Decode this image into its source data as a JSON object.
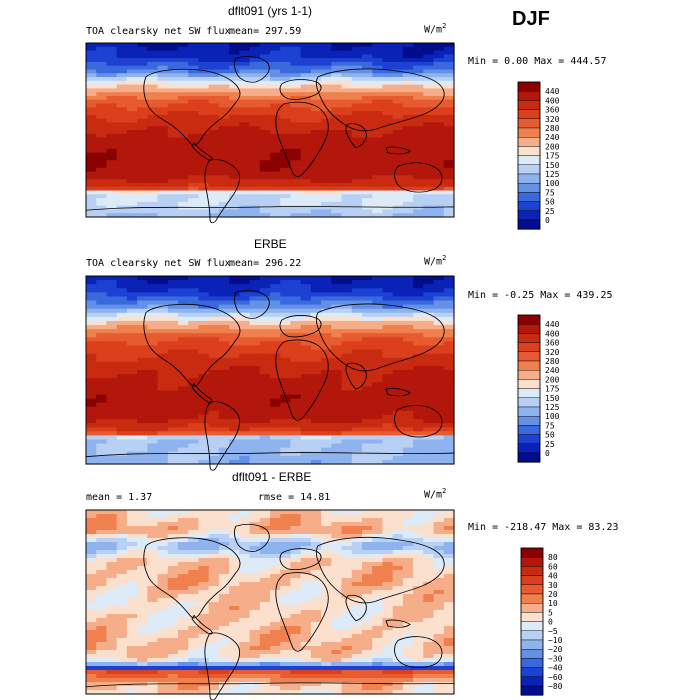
{
  "header": {
    "season": "DJF"
  },
  "chart_data": [
    {
      "type": "heatmap",
      "title": "dflt091 (yrs 1-1)",
      "field_label": "TOA clearsky net SW flux",
      "mean_label": "mean= 297.59",
      "units": "W/m",
      "units_sup": "2",
      "range_label": "Min =    0.00 Max = 444.57",
      "min": 0.0,
      "max": 444.57,
      "mean": 297.59,
      "colorbar": {
        "levels": [
          "440",
          "400",
          "360",
          "320",
          "280",
          "240",
          "200",
          "175",
          "150",
          "125",
          "100",
          "75",
          "50",
          "25",
          "0"
        ],
        "colors": [
          "#8b0000",
          "#b3170b",
          "#c92b10",
          "#dc3f1c",
          "#e85a30",
          "#f0814f",
          "#f6ae8a",
          "#fbe0cd",
          "#ddeaf8",
          "#b7d0f3",
          "#8fb3ee",
          "#6490e6",
          "#3a69de",
          "#1d41d3",
          "#0b22b7",
          "#010d8c"
        ]
      },
      "lat_profile": [
        {
          "lat": 90,
          "value": 0
        },
        {
          "lat": 75,
          "value": 20
        },
        {
          "lat": 60,
          "value": 80
        },
        {
          "lat": 50,
          "value": 160
        },
        {
          "lat": 40,
          "value": 230
        },
        {
          "lat": 30,
          "value": 300
        },
        {
          "lat": 15,
          "value": 360
        },
        {
          "lat": 0,
          "value": 400
        },
        {
          "lat": -10,
          "value": 420
        },
        {
          "lat": -25,
          "value": 430
        },
        {
          "lat": -45,
          "value": 425
        },
        {
          "lat": -60,
          "value": 360
        },
        {
          "lat": -65,
          "value": 150
        },
        {
          "lat": -75,
          "value": 150
        },
        {
          "lat": -90,
          "value": 120
        }
      ]
    },
    {
      "type": "heatmap",
      "title": "ERBE",
      "field_label": "TOA clearsky net SW flux",
      "mean_label": "mean= 296.22",
      "units": "W/m",
      "units_sup": "2",
      "range_label": "Min =  -0.25 Max = 439.25",
      "min": -0.25,
      "max": 439.25,
      "mean": 296.22,
      "colorbar": {
        "levels": [
          "440",
          "400",
          "360",
          "320",
          "280",
          "240",
          "200",
          "175",
          "150",
          "125",
          "100",
          "75",
          "50",
          "25",
          "0"
        ],
        "colors": [
          "#8b0000",
          "#b3170b",
          "#c92b10",
          "#dc3f1c",
          "#e85a30",
          "#f0814f",
          "#f6ae8a",
          "#fbe0cd",
          "#ddeaf8",
          "#b7d0f3",
          "#8fb3ee",
          "#6490e6",
          "#3a69de",
          "#1d41d3",
          "#0b22b7",
          "#010d8c"
        ]
      },
      "lat_profile": [
        {
          "lat": 90,
          "value": 0
        },
        {
          "lat": 75,
          "value": 25
        },
        {
          "lat": 60,
          "value": 90
        },
        {
          "lat": 50,
          "value": 170
        },
        {
          "lat": 40,
          "value": 240
        },
        {
          "lat": 30,
          "value": 310
        },
        {
          "lat": 15,
          "value": 355
        },
        {
          "lat": 0,
          "value": 395
        },
        {
          "lat": -10,
          "value": 410
        },
        {
          "lat": -25,
          "value": 425
        },
        {
          "lat": -45,
          "value": 415
        },
        {
          "lat": -60,
          "value": 340
        },
        {
          "lat": -65,
          "value": 120
        },
        {
          "lat": -75,
          "value": 125
        },
        {
          "lat": -90,
          "value": 110
        }
      ]
    },
    {
      "type": "heatmap",
      "title": "dflt091 - ERBE",
      "field_label": "mean =    1.37",
      "mean_label": "rmse =  14.81",
      "units": "W/m",
      "units_sup": "2",
      "range_label": "Min = -218.47 Max =  83.23",
      "min": -218.47,
      "max": 83.23,
      "mean": 1.37,
      "rmse": 14.81,
      "colorbar": {
        "levels": [
          "80",
          "60",
          "40",
          "30",
          "20",
          "10",
          "5",
          "0",
          "−5",
          "−10",
          "−20",
          "−30",
          "−40",
          "−60",
          "−80"
        ],
        "colors": [
          "#8b0000",
          "#b3170b",
          "#c92b10",
          "#dc3f1c",
          "#e85a30",
          "#f0814f",
          "#f6ae8a",
          "#fbe0cd",
          "#ddeaf8",
          "#b7d0f3",
          "#8fb3ee",
          "#6490e6",
          "#3a69de",
          "#1d41d3",
          "#0b22b7",
          "#010d8c"
        ]
      },
      "lat_profile": [
        {
          "lat": 90,
          "value": 2
        },
        {
          "lat": 70,
          "value": 8
        },
        {
          "lat": 55,
          "value": -12
        },
        {
          "lat": 40,
          "value": 4
        },
        {
          "lat": 20,
          "value": 6
        },
        {
          "lat": 0,
          "value": 3
        },
        {
          "lat": -20,
          "value": 4
        },
        {
          "lat": -45,
          "value": 6
        },
        {
          "lat": -55,
          "value": 3
        },
        {
          "lat": -60,
          "value": -8
        },
        {
          "lat": -64,
          "value": -60
        },
        {
          "lat": -68,
          "value": 30
        },
        {
          "lat": -80,
          "value": 6
        },
        {
          "lat": -90,
          "value": 2
        }
      ]
    }
  ]
}
